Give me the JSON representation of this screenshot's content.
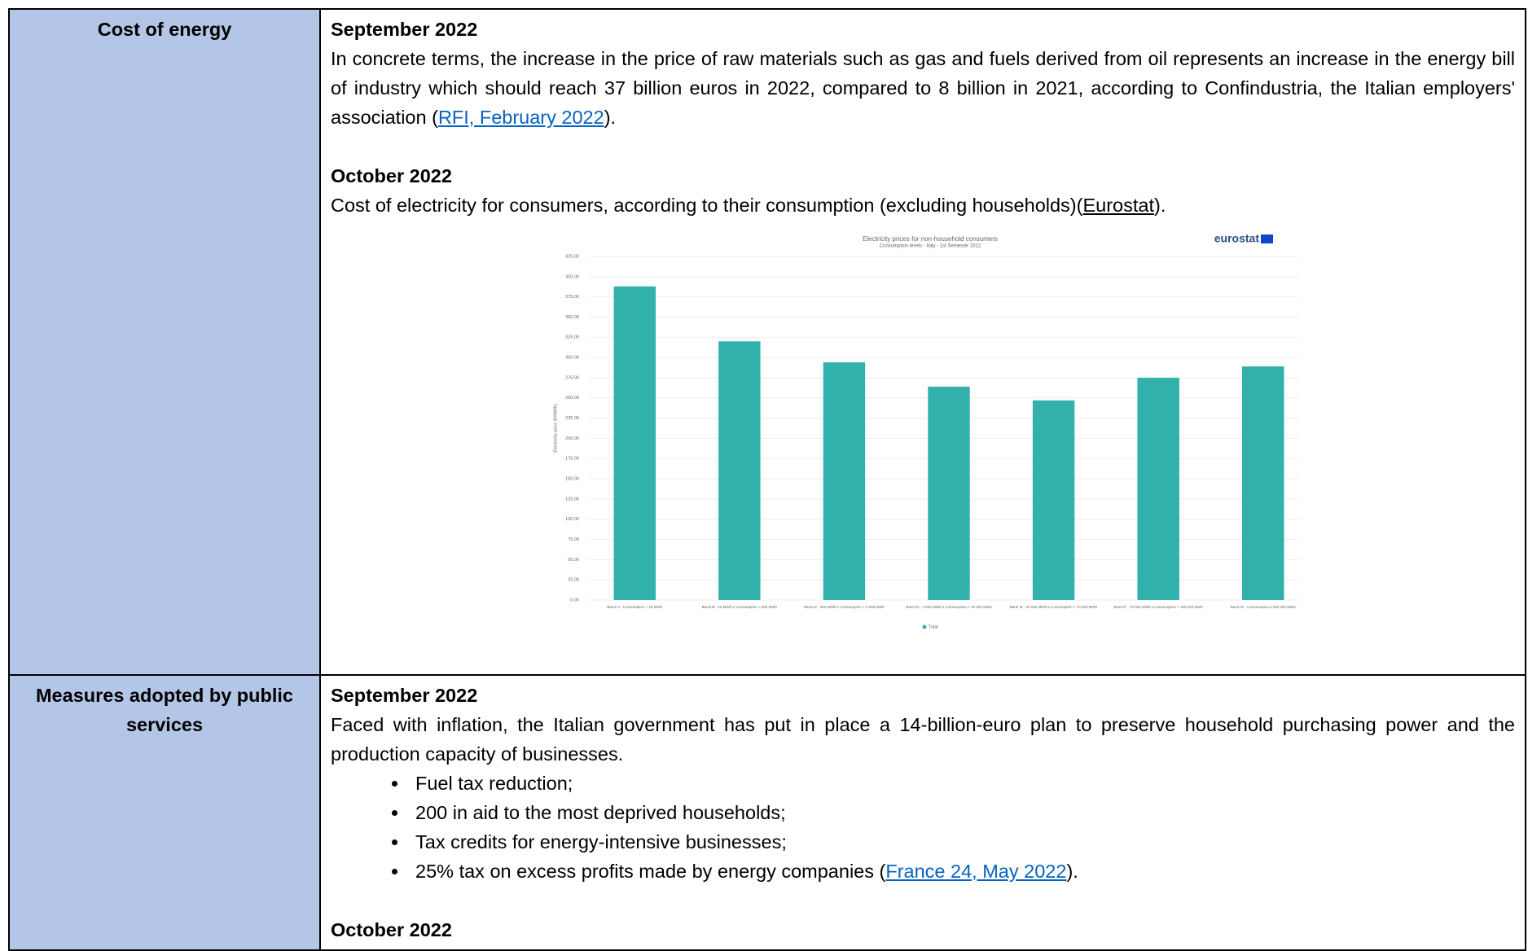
{
  "rows": [
    {
      "label": "Cost of energy",
      "entries": [
        {
          "heading": "September 2022",
          "text": "In concrete terms, the increase in the price of raw materials such as gas and fuels derived from oil represents an increase in the energy bill of industry which should reach 37 billion euros in 2022, compared to 8 billion in 2021, according to Confindustria, the Italian employers' association (",
          "link": "RFI, February 2022",
          "text_after": ")."
        },
        {
          "heading": "October 2022",
          "text": "Cost of electricity for consumers, according to their consumption (excluding households)(",
          "link": "Eurostat",
          "text_after": ")."
        }
      ]
    },
    {
      "label": "Measures adopted by public services",
      "entries": [
        {
          "heading": "September 2022",
          "text": "Faced with inflation, the Italian government has put in place a 14-billion-euro plan to preserve household purchasing power and the production capacity of businesses.",
          "bullets": [
            "Fuel tax reduction;",
            "200 in aid to the most deprived households;",
            "Tax credits for energy-intensive businesses;",
            "25% tax on excess profits made by energy companies ("
          ],
          "link": "France 24, May 2022",
          "text_after": ")."
        },
        {
          "heading": "October 2022"
        }
      ]
    }
  ],
  "chart_data": {
    "type": "bar",
    "title": "Electricity prices for non-household consumers",
    "subtitle": "Consumption levels - Italy - 1st Semester 2022",
    "brand": "eurostat",
    "y_label": "Electricity price (€/MWh)",
    "color": "#32b0ab",
    "grid": true,
    "legend": "bottom",
    "series": [
      {
        "name": "Total",
        "color": "#32b0ab",
        "values": [
          388,
          320,
          294,
          264,
          247,
          275,
          289
        ]
      }
    ],
    "categories": [
      "Band IA : Consumption < 20 MWh",
      "Band IB : 20 MWh ≤ Consumption < 500 MWh",
      "Band IC : 500 MWh ≤ Consumption < 2 000 MWh",
      "Band ID : 2 000 MWh ≤ Consumption < 20 000 MWh",
      "Band IE : 20 000 MWh ≤ Consumption < 70 000 MWh",
      "Band IF : 70 000 MWh ≤ Consumption < 150 000 MWh",
      "Band IG : Consumption ≥ 150 000 MWh"
    ],
    "ylim": [
      0,
      425
    ],
    "yticks": [
      {
        "value": 0,
        "label": "0.00"
      },
      {
        "value": 25,
        "label": "25.00"
      },
      {
        "value": 50,
        "label": "50.00"
      },
      {
        "value": 75,
        "label": "75.00"
      },
      {
        "value": 100,
        "label": "100.00"
      },
      {
        "value": 125,
        "label": "125.00"
      },
      {
        "value": 150,
        "label": "150.00"
      },
      {
        "value": 175,
        "label": "175.00"
      },
      {
        "value": 200,
        "label": "200.00"
      },
      {
        "value": 225,
        "label": "225.00"
      },
      {
        "value": 250,
        "label": "250.00"
      },
      {
        "value": 275,
        "label": "275.00"
      },
      {
        "value": 300,
        "label": "300.00"
      },
      {
        "value": 325,
        "label": "325.00"
      },
      {
        "value": 350,
        "label": "350.00"
      },
      {
        "value": 375,
        "label": "375.00"
      },
      {
        "value": 400,
        "label": "400.00"
      },
      {
        "value": 425,
        "label": "425.00"
      }
    ]
  }
}
